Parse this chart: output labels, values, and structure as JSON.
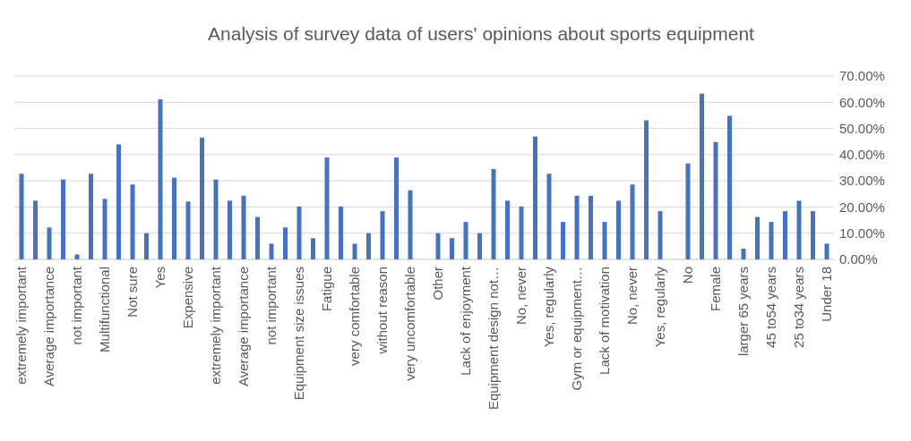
{
  "chart_data": {
    "type": "bar",
    "title": "Analysis of survey data of users' opinions about sports equipment",
    "categories": [
      "extremely important",
      null,
      "Average importance",
      null,
      "not important",
      null,
      "Multifunctional",
      null,
      "Not sure",
      null,
      "Yes",
      null,
      "Expensive",
      null,
      "extremely important",
      null,
      "Average importance",
      null,
      "not important",
      null,
      "Equipment size issues",
      null,
      "Fatigue",
      null,
      "very comfortable",
      null,
      "without reason",
      null,
      "very uncomfortable",
      null,
      "Other",
      null,
      "Lack of enjoyment",
      null,
      "Equipment design not…",
      null,
      "No, never",
      null,
      "Yes, regularly",
      null,
      "Gym or equipment…",
      null,
      "Lack of motivation",
      null,
      "No, never",
      null,
      "Yes, regularly",
      null,
      "No",
      null,
      "Female",
      null,
      "larger 65 years",
      null,
      "45 to54 years",
      null,
      "25 to34 years",
      null,
      "Under 18"
    ],
    "series": [
      {
        "color": "#4472c4",
        "values": [
          32.7,
          22.4,
          12.2,
          30.5,
          1.9,
          32.7,
          23.1,
          43.9,
          28.6,
          10.0,
          61.1,
          31.2,
          22.1,
          46.5,
          30.5,
          22.4,
          24.3,
          16.2,
          6.0,
          12.2,
          20.2,
          8.1,
          38.9,
          20.2,
          6.0,
          10.0,
          18.4,
          38.9,
          26.4,
          null,
          10.0,
          8.1,
          14.3,
          10.0,
          34.5,
          22.4,
          20.2,
          46.9,
          32.7,
          14.3,
          24.3,
          24.3,
          14.3,
          22.4,
          28.6,
          53.1,
          18.4,
          null,
          36.6,
          63.3,
          44.8,
          54.8,
          4.1,
          16.2,
          14.3,
          18.4,
          22.4,
          18.4,
          6.0
        ]
      }
    ],
    "ylim": [
      0,
      70
    ],
    "yticks": [
      {
        "value": 0,
        "label": "0.00%"
      },
      {
        "value": 10,
        "label": "10.00%"
      },
      {
        "value": 20,
        "label": "20.00%"
      },
      {
        "value": 30,
        "label": "30.00%"
      },
      {
        "value": 40,
        "label": "40.00%"
      },
      {
        "value": 50,
        "label": "50.00%"
      },
      {
        "value": 60,
        "label": "60.00%"
      },
      {
        "value": 70,
        "label": "70.00%"
      }
    ],
    "grid": "y"
  }
}
